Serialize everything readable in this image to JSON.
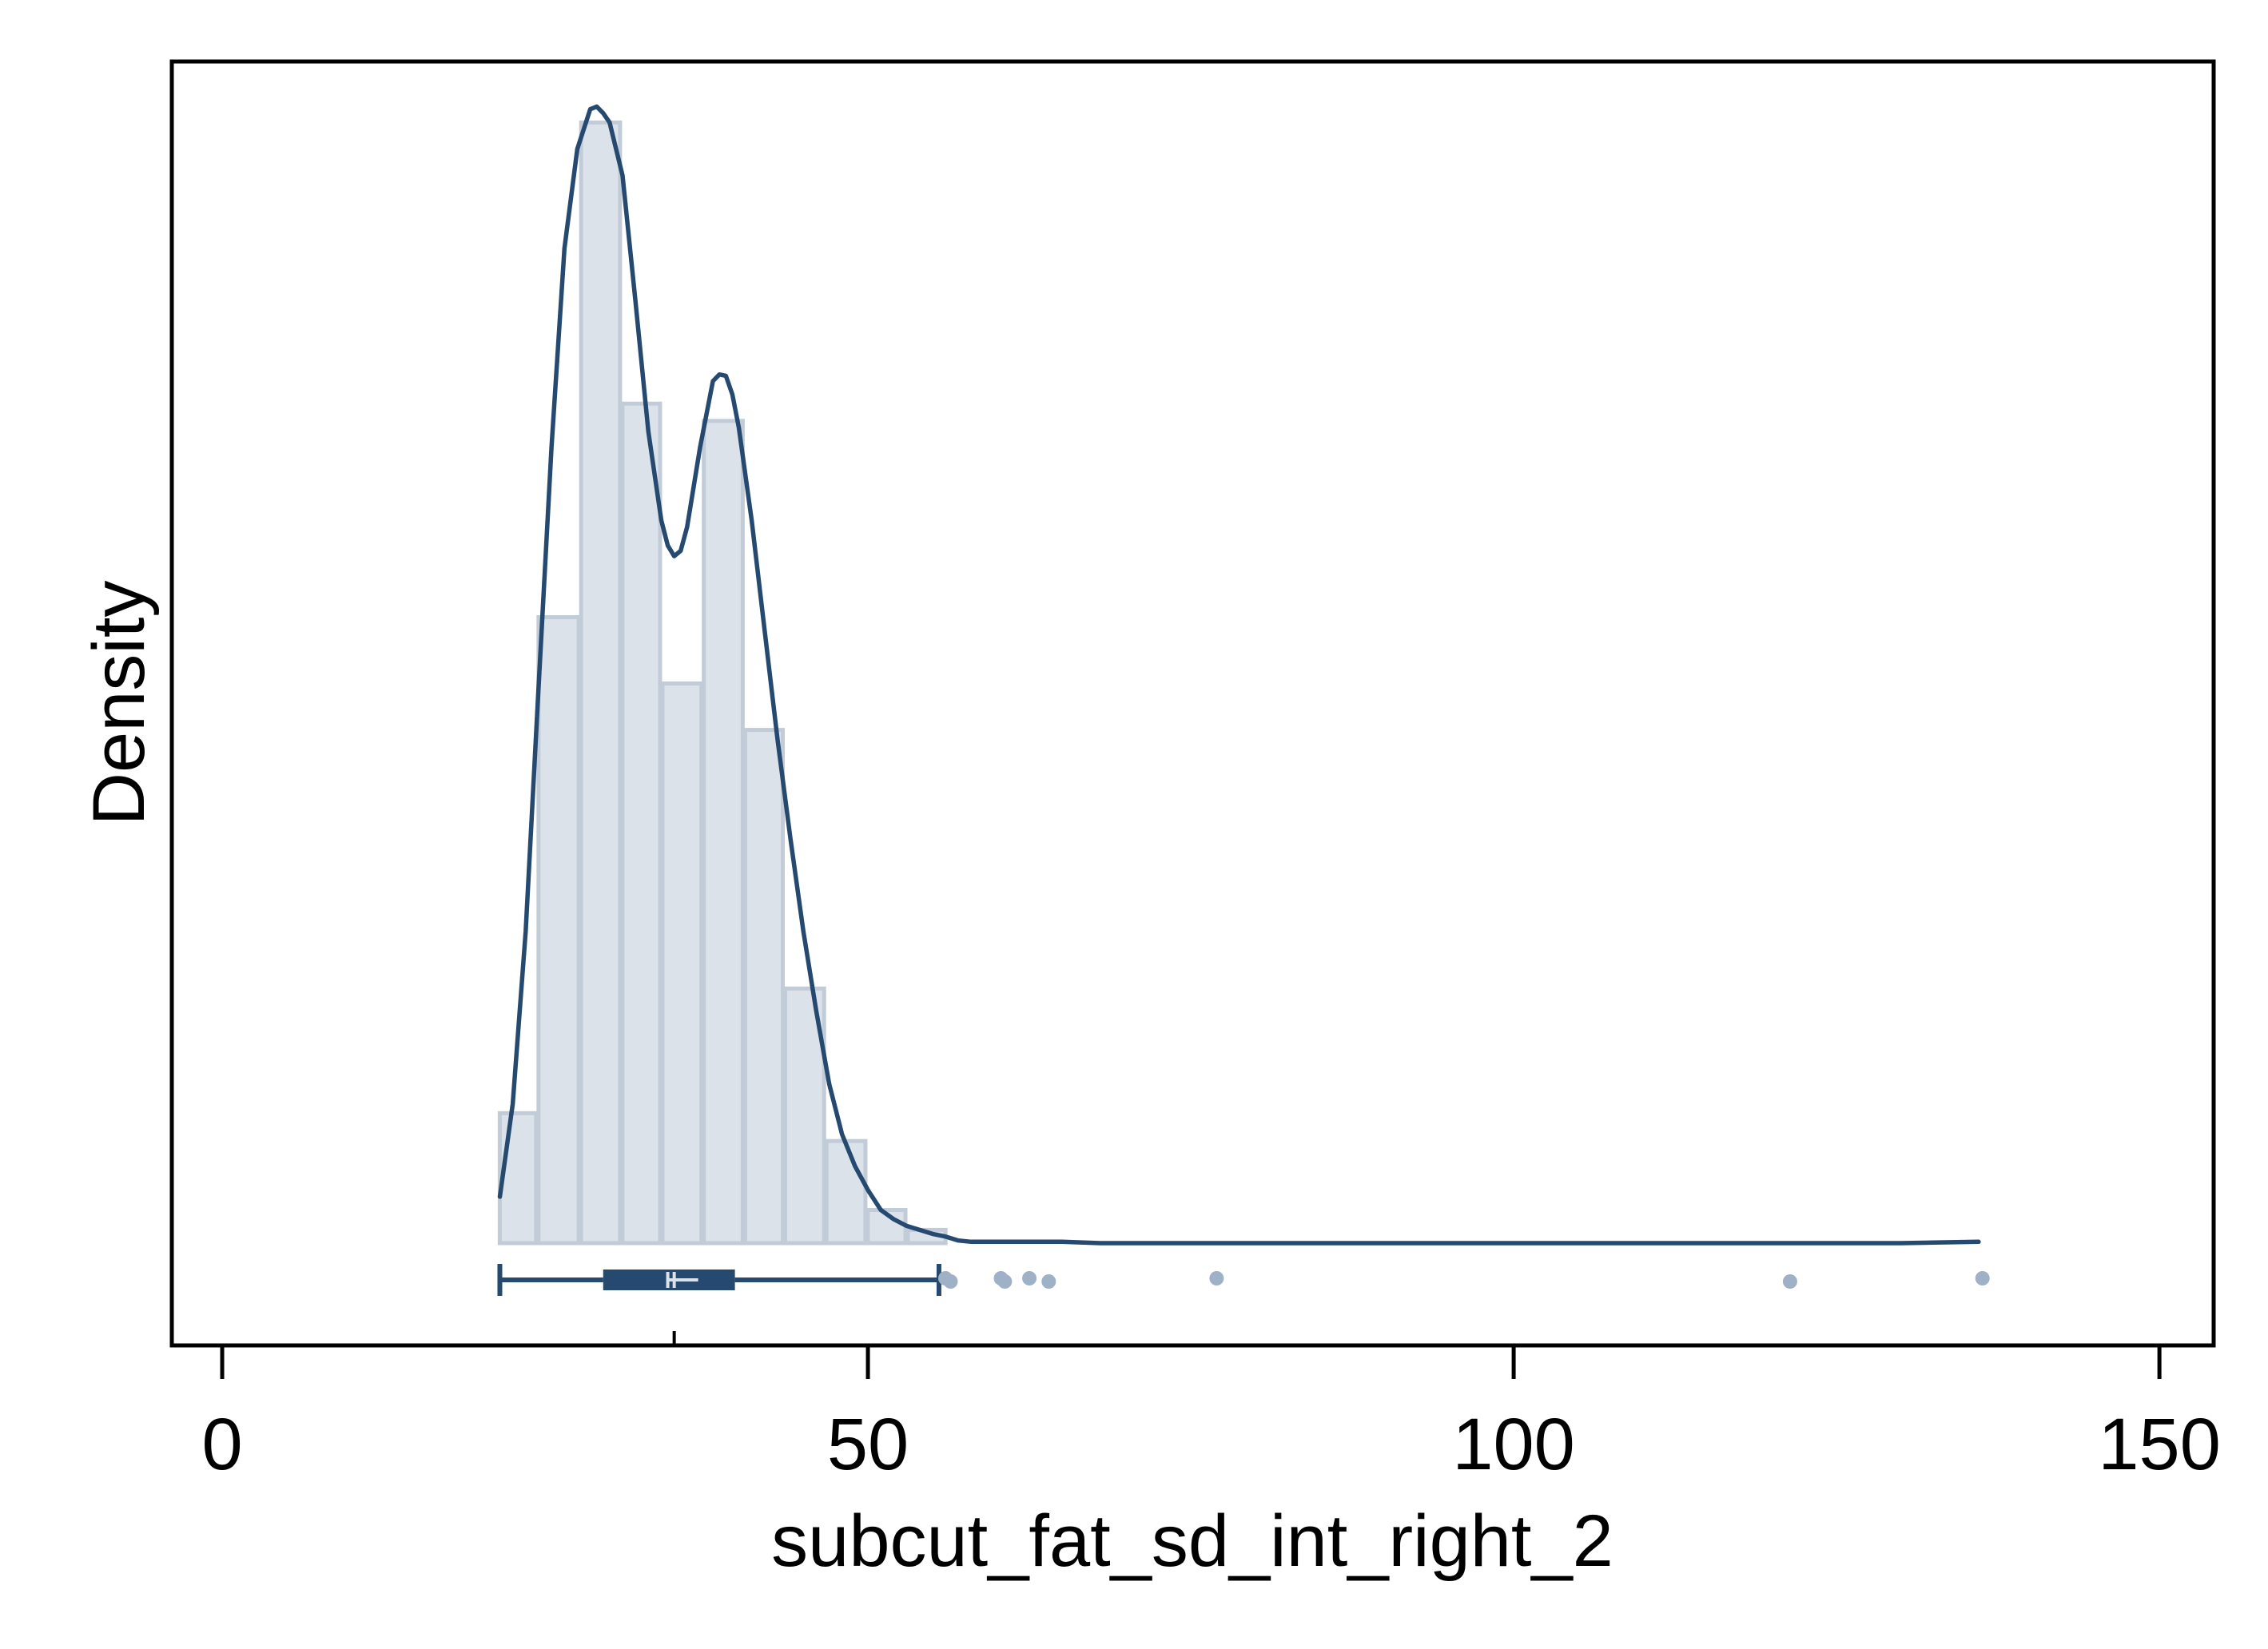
{
  "chart_data": {
    "type": "histogram",
    "xlabel": "subcut_fat_sd_int_right_2",
    "ylabel": "Density",
    "xlim": [
      -3.9,
      154.2
    ],
    "x_ticks": [
      0,
      50,
      100,
      150
    ],
    "x_tick_labels": [
      "0",
      "50",
      "100",
      "150"
    ],
    "y_ticks_shown": false,
    "grid": false,
    "colors": {
      "bar_fill": "#dbe2ea",
      "bar_edge": "#c2ccd8",
      "curve": "#25496f",
      "box": "#25496f",
      "outlier": "#9fb1c6",
      "axis": "#000000"
    },
    "histogram": {
      "bin_edges": [
        21.4,
        24.4,
        27.7,
        30.9,
        34.0,
        37.2,
        40.4,
        43.5,
        46.7,
        49.9,
        53.0,
        56.1
      ],
      "densities": [
        0.0098,
        0.0472,
        0.0845,
        0.0633,
        0.0422,
        0.062,
        0.0387,
        0.0192,
        0.0077,
        0.0025,
        0.001
      ]
    },
    "kde": {
      "x": [
        21.5,
        22.5,
        23.5,
        24.5,
        25.5,
        26.5,
        27.5,
        28.5,
        29.0,
        29.5,
        30.0,
        31.0,
        32.0,
        33.0,
        34.0,
        34.5,
        35.0,
        35.5,
        36.0,
        37.0,
        38.0,
        38.5,
        39.0,
        39.5,
        40.0,
        41.0,
        42.0,
        43.0,
        44.0,
        45.0,
        46.0,
        47.0,
        48.0,
        49.0,
        50.0,
        51.0,
        52.0,
        53.0,
        54.0,
        55.0,
        56.0,
        57.0,
        58.0,
        60.0,
        62.0,
        65.0,
        68.0,
        72.0,
        76.0,
        80.0,
        90.0,
        100.0,
        110.0,
        120.0,
        130.0,
        136.0
      ],
      "y": [
        0.0035,
        0.0105,
        0.0235,
        0.042,
        0.06,
        0.075,
        0.0825,
        0.0855,
        0.0857,
        0.0852,
        0.0845,
        0.0805,
        0.071,
        0.0612,
        0.0545,
        0.0526,
        0.0518,
        0.0522,
        0.054,
        0.06,
        0.065,
        0.0655,
        0.0654,
        0.064,
        0.0615,
        0.0545,
        0.0462,
        0.038,
        0.0305,
        0.0235,
        0.0175,
        0.012,
        0.0082,
        0.0058,
        0.004,
        0.0025,
        0.0018,
        0.0013,
        0.001,
        0.0007,
        0.0005,
        0.0002,
        0.0001,
        0.0001,
        0.0001,
        0.0001,
        0.0,
        0.0,
        0.0,
        0.0,
        0.0,
        0.0,
        0.0,
        0.0,
        0.0,
        0.0001
      ]
    },
    "boxplot": {
      "whisker_low": 21.5,
      "q1": 29.5,
      "median": 35.0,
      "mean": 34.5,
      "q3": 39.7,
      "whisker_high": 55.5,
      "outliers": [
        56.0,
        56.4,
        60.3,
        60.6,
        62.5,
        64.0,
        77.0,
        121.4,
        136.3
      ]
    }
  }
}
